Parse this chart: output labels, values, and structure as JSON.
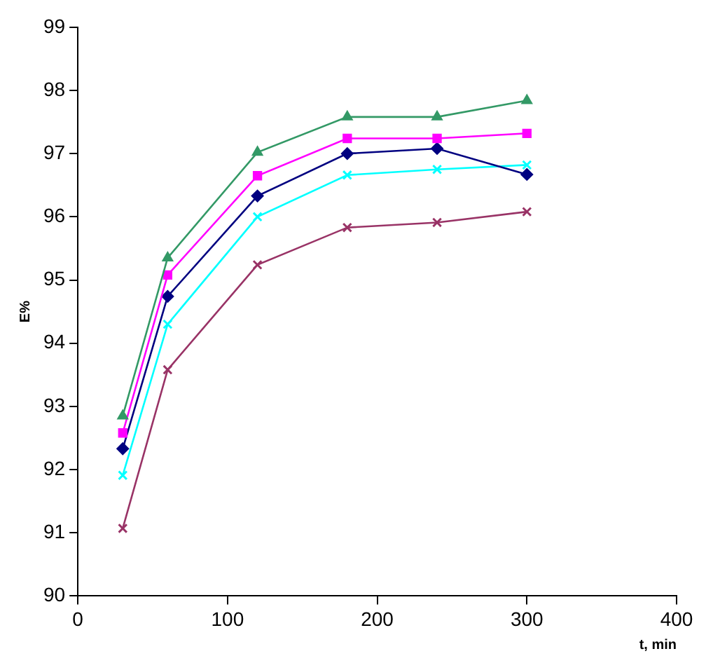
{
  "chart_data": {
    "type": "line",
    "xlabel": "t, min",
    "ylabel": "E%",
    "xlim": [
      0,
      400
    ],
    "xticks": [
      0,
      100,
      200,
      300,
      400
    ],
    "ylim": [
      90,
      99
    ],
    "yticks": [
      90,
      91,
      92,
      93,
      94,
      95,
      96,
      97,
      98,
      99
    ],
    "grid": false,
    "legend": false,
    "x": [
      30,
      60,
      120,
      180,
      240,
      300
    ],
    "series": [
      {
        "color": "#339966",
        "marker": "triangle",
        "values": [
          92.85,
          95.35,
          97.02,
          97.58,
          97.58,
          97.84
        ]
      },
      {
        "color": "#ff00ff",
        "marker": "square",
        "values": [
          92.58,
          95.08,
          96.65,
          97.24,
          97.24,
          97.32
        ]
      },
      {
        "color": "#000080",
        "marker": "diamond",
        "values": [
          92.33,
          94.74,
          96.33,
          97.0,
          97.08,
          96.67
        ]
      },
      {
        "color": "#00ffff",
        "marker": "cross",
        "values": [
          91.91,
          94.3,
          96.0,
          96.66,
          96.75,
          96.82
        ]
      },
      {
        "color": "#993366",
        "marker": "cross",
        "values": [
          91.07,
          93.58,
          95.24,
          95.83,
          95.91,
          96.08
        ]
      }
    ]
  }
}
